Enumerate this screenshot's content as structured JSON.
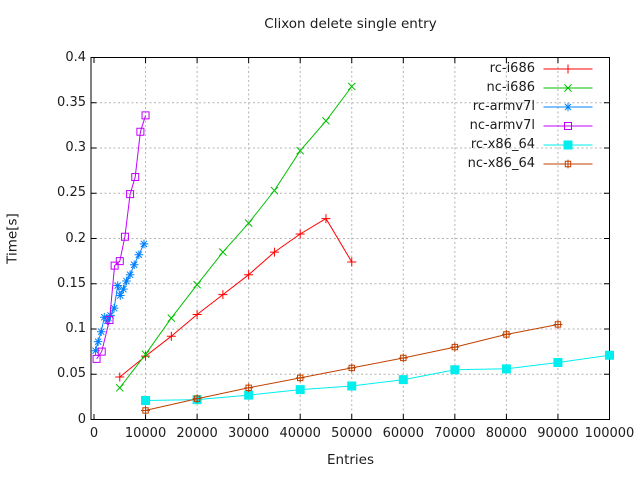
{
  "chart_data": {
    "type": "line",
    "title": "Clixon delete single entry",
    "xlabel": "Entries",
    "ylabel": "Time[s]",
    "xlim": [
      0,
      100000
    ],
    "ylim": [
      0,
      0.4
    ],
    "xticks": [
      0,
      10000,
      20000,
      30000,
      40000,
      50000,
      60000,
      70000,
      80000,
      90000,
      100000
    ],
    "yticks": [
      0,
      0.05,
      0.1,
      0.15,
      0.2,
      0.25,
      0.3,
      0.35,
      0.4
    ],
    "grid": true,
    "grid_color": "#b4b4b4",
    "axis_color": "#000000",
    "legend_position": "top-right-inside",
    "series": [
      {
        "name": "rc-i686",
        "color": "#ff0000",
        "marker": "plus",
        "x": [
          5000,
          10000,
          15000,
          20000,
          25000,
          30000,
          35000,
          40000,
          45000,
          50000
        ],
        "y": [
          0.047,
          0.07,
          0.092,
          0.116,
          0.138,
          0.16,
          0.185,
          0.205,
          0.222,
          0.174
        ]
      },
      {
        "name": "nc-i686",
        "color": "#00c000",
        "marker": "cross",
        "x": [
          5000,
          10000,
          15000,
          20000,
          25000,
          30000,
          35000,
          40000,
          45000,
          50000
        ],
        "y": [
          0.035,
          0.072,
          0.112,
          0.149,
          0.185,
          0.217,
          0.253,
          0.297,
          0.33,
          0.368
        ]
      },
      {
        "name": "rc-armv7l",
        "color": "#0080ff",
        "marker": "asterisk",
        "x": [
          300,
          800,
          1400,
          2000,
          2600,
          3200,
          3900,
          4600,
          5100,
          5700,
          6300,
          7000,
          7800,
          8700,
          9700
        ],
        "y": [
          0.076,
          0.086,
          0.097,
          0.113,
          0.109,
          0.115,
          0.123,
          0.148,
          0.137,
          0.144,
          0.153,
          0.16,
          0.171,
          0.182,
          0.194
        ]
      },
      {
        "name": "nc-armv7l",
        "color": "#c000ff",
        "marker": "open-square",
        "x": [
          500,
          1500,
          3000,
          4000,
          5000,
          6000,
          7000,
          8000,
          9000,
          10000
        ],
        "y": [
          0.067,
          0.075,
          0.11,
          0.17,
          0.175,
          0.202,
          0.249,
          0.268,
          0.318,
          0.336
        ]
      },
      {
        "name": "rc-x86_64",
        "color": "#00eeee",
        "marker": "filled-square",
        "x": [
          10000,
          20000,
          30000,
          40000,
          50000,
          60000,
          70000,
          80000,
          90000,
          100000
        ],
        "y": [
          0.021,
          0.022,
          0.027,
          0.033,
          0.037,
          0.044,
          0.055,
          0.056,
          0.063,
          0.071
        ]
      },
      {
        "name": "nc-x86_64",
        "color": "#c04000",
        "marker": "square-plus",
        "x": [
          10000,
          20000,
          30000,
          40000,
          50000,
          60000,
          70000,
          80000,
          90000
        ],
        "y": [
          0.01,
          0.023,
          0.035,
          0.046,
          0.057,
          0.068,
          0.08,
          0.094,
          0.105
        ]
      }
    ]
  }
}
